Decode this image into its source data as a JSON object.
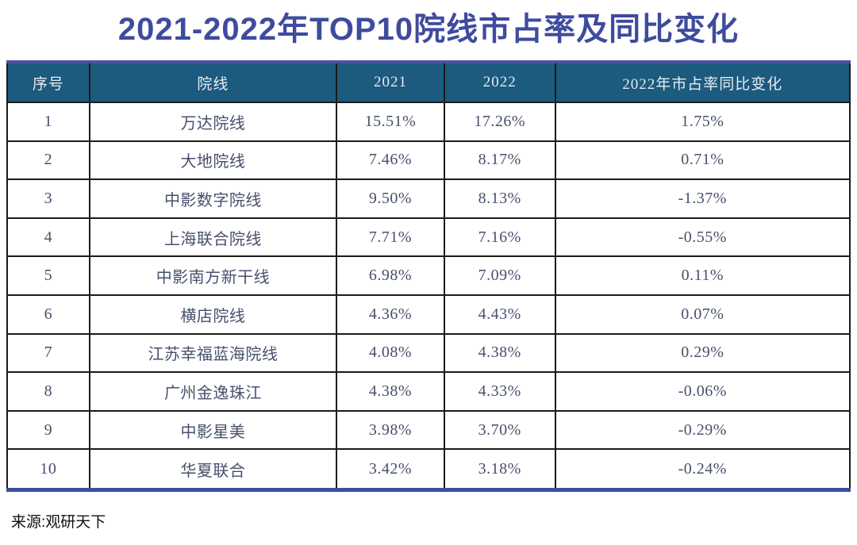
{
  "title": "2021-2022年TOP10院线市占率及同比变化",
  "source_label": "来源:观研天下",
  "colors": {
    "title": "#3E4B9E",
    "header_bg": "#1C5A7E",
    "header_text": "#E6EDF3",
    "cell_text": "#47506C",
    "table_top_border": "#4C519F",
    "table_bottom_border": "#3B4E9D",
    "grid": "#1b1b1b"
  },
  "chart_data": {
    "type": "table",
    "title": "2021-2022年TOP10院线市占率及同比变化",
    "columns": [
      "序号",
      "院线",
      "2021",
      "2022",
      "2022年市占率同比变化"
    ],
    "rows": [
      [
        "1",
        "万达院线",
        "15.51%",
        "17.26%",
        "1.75%"
      ],
      [
        "2",
        "大地院线",
        "7.46%",
        "8.17%",
        "0.71%"
      ],
      [
        "3",
        "中影数字院线",
        "9.50%",
        "8.13%",
        "-1.37%"
      ],
      [
        "4",
        "上海联合院线",
        "7.71%",
        "7.16%",
        "-0.55%"
      ],
      [
        "5",
        "中影南方新干线",
        "6.98%",
        "7.09%",
        "0.11%"
      ],
      [
        "6",
        "横店院线",
        "4.36%",
        "4.43%",
        "0.07%"
      ],
      [
        "7",
        "江苏幸福蓝海院线",
        "4.08%",
        "4.38%",
        "0.29%"
      ],
      [
        "8",
        "广州金逸珠江",
        "4.38%",
        "4.33%",
        "-0.06%"
      ],
      [
        "9",
        "中影星美",
        "3.98%",
        "3.70%",
        "-0.29%"
      ],
      [
        "10",
        "华夏联合",
        "3.42%",
        "3.18%",
        "-0.24%"
      ]
    ]
  }
}
